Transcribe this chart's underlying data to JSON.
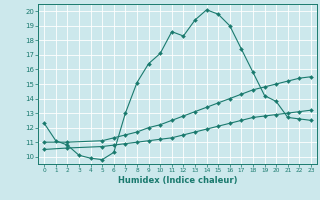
{
  "title": "",
  "xlabel": "Humidex (Indice chaleur)",
  "xlim": [
    -0.5,
    23.5
  ],
  "ylim": [
    9.5,
    20.5
  ],
  "xticks": [
    0,
    1,
    2,
    3,
    4,
    5,
    6,
    7,
    8,
    9,
    10,
    11,
    12,
    13,
    14,
    15,
    16,
    17,
    18,
    19,
    20,
    21,
    22,
    23
  ],
  "yticks": [
    10,
    11,
    12,
    13,
    14,
    15,
    16,
    17,
    18,
    19,
    20
  ],
  "bg_color": "#cce8ec",
  "line_color": "#1a7a6e",
  "grid_color": "#b0d4d8",
  "line1_x": [
    0,
    1,
    2,
    3,
    4,
    5,
    6,
    7,
    8,
    9,
    10,
    11,
    12,
    13,
    14,
    15,
    16,
    17,
    18,
    19,
    20,
    21,
    22,
    23
  ],
  "line1_y": [
    12.3,
    11.1,
    10.8,
    10.1,
    9.9,
    9.8,
    10.3,
    13.0,
    15.1,
    16.4,
    17.1,
    18.6,
    18.3,
    19.4,
    20.1,
    19.8,
    19.0,
    17.4,
    15.8,
    14.2,
    13.8,
    12.7,
    12.6,
    12.5
  ],
  "line2_x": [
    0,
    2,
    5,
    6,
    7,
    8,
    9,
    10,
    11,
    12,
    13,
    14,
    15,
    16,
    17,
    18,
    19,
    20,
    21,
    22,
    23
  ],
  "line2_y": [
    11.0,
    11.0,
    11.1,
    11.3,
    11.5,
    11.7,
    12.0,
    12.2,
    12.5,
    12.8,
    13.1,
    13.4,
    13.7,
    14.0,
    14.3,
    14.6,
    14.8,
    15.0,
    15.2,
    15.4,
    15.5
  ],
  "line3_x": [
    0,
    2,
    5,
    6,
    7,
    8,
    9,
    10,
    11,
    12,
    13,
    14,
    15,
    16,
    17,
    18,
    19,
    20,
    21,
    22,
    23
  ],
  "line3_y": [
    10.5,
    10.6,
    10.7,
    10.8,
    10.9,
    11.0,
    11.1,
    11.2,
    11.3,
    11.5,
    11.7,
    11.9,
    12.1,
    12.3,
    12.5,
    12.7,
    12.8,
    12.9,
    13.0,
    13.1,
    13.2
  ]
}
